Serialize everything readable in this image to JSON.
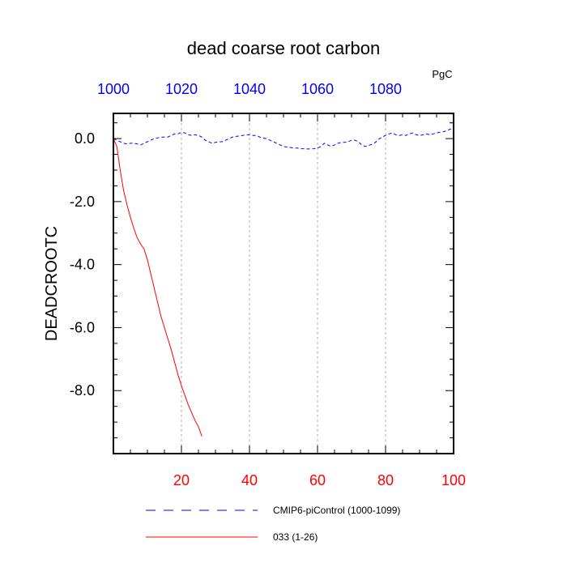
{
  "chart_data": {
    "type": "line",
    "title": "dead coarse root carbon",
    "units": "PgC",
    "ylabel": "DEADCROOTC",
    "ylim": [
      -10.0,
      0.8
    ],
    "yticks": [
      0.0,
      -2.0,
      -4.0,
      -6.0,
      -8.0
    ],
    "ytick_labels": [
      "0.0",
      "-2.0",
      "-4.0",
      "-6.0",
      "-8.0"
    ],
    "bottom_axis": {
      "range": [
        0,
        100
      ],
      "ticks": [
        20,
        40,
        60,
        80,
        100
      ],
      "tick_labels": [
        "20",
        "40",
        "60",
        "80",
        "100"
      ],
      "color": "#ff0000"
    },
    "top_axis": {
      "range": [
        1000,
        1100
      ],
      "ticks": [
        1000,
        1020,
        1040,
        1060,
        1080
      ],
      "tick_labels": [
        "1000",
        "1020",
        "1040",
        "1060",
        "1080"
      ],
      "color": "#0000ff"
    },
    "grid": "vertical dashed at major x ticks",
    "legend_placement": "bottom",
    "series": [
      {
        "name": "CMIP6-piControl (1000-1099)",
        "axis": "top",
        "color": "#0000ff",
        "dash": "dashed",
        "x": [
          1000,
          1001,
          1002,
          1003,
          1004,
          1005,
          1006,
          1007,
          1008,
          1009,
          1010,
          1011,
          1012,
          1013,
          1014,
          1015,
          1016,
          1017,
          1018,
          1019,
          1020,
          1021,
          1022,
          1023,
          1024,
          1025,
          1026,
          1027,
          1028,
          1029,
          1030,
          1031,
          1032,
          1033,
          1034,
          1035,
          1036,
          1037,
          1038,
          1039,
          1040,
          1041,
          1042,
          1043,
          1044,
          1045,
          1046,
          1047,
          1048,
          1049,
          1050,
          1051,
          1052,
          1053,
          1054,
          1055,
          1056,
          1057,
          1058,
          1059,
          1060,
          1061,
          1062,
          1063,
          1064,
          1065,
          1066,
          1067,
          1068,
          1069,
          1070,
          1071,
          1072,
          1073,
          1074,
          1075,
          1076,
          1077,
          1078,
          1079,
          1080,
          1081,
          1082,
          1083,
          1084,
          1085,
          1086,
          1087,
          1088,
          1089,
          1090,
          1091,
          1092,
          1093,
          1094,
          1095,
          1096,
          1097,
          1098,
          1099,
          1100
        ],
        "y": [
          0.0,
          -0.05,
          -0.1,
          -0.15,
          -0.17,
          -0.15,
          -0.15,
          -0.17,
          -0.2,
          -0.15,
          -0.1,
          -0.05,
          0.0,
          0.02,
          0.05,
          0.05,
          0.05,
          0.1,
          0.15,
          0.15,
          0.2,
          0.18,
          0.12,
          0.1,
          0.12,
          0.1,
          0.05,
          -0.05,
          -0.1,
          -0.15,
          -0.12,
          -0.1,
          -0.1,
          -0.05,
          0.0,
          0.05,
          0.07,
          0.08,
          0.1,
          0.12,
          0.12,
          0.1,
          0.1,
          0.05,
          0.02,
          0.0,
          -0.05,
          -0.1,
          -0.15,
          -0.2,
          -0.25,
          -0.27,
          -0.28,
          -0.3,
          -0.3,
          -0.32,
          -0.32,
          -0.33,
          -0.33,
          -0.32,
          -0.3,
          -0.25,
          -0.15,
          -0.2,
          -0.25,
          -0.2,
          -0.15,
          -0.12,
          -0.12,
          -0.1,
          -0.05,
          -0.05,
          -0.1,
          -0.2,
          -0.25,
          -0.22,
          -0.18,
          -0.12,
          -0.02,
          0.05,
          0.1,
          0.15,
          0.18,
          0.12,
          0.1,
          0.12,
          0.1,
          0.15,
          0.18,
          0.12,
          0.1,
          0.12,
          0.15,
          0.12,
          0.15,
          0.18,
          0.2,
          0.22,
          0.25,
          0.3,
          0.33
        ]
      },
      {
        "name": "033 (1-26)",
        "axis": "bottom",
        "color": "#ff0000",
        "dash": "solid",
        "x": [
          0,
          1,
          2,
          3,
          4,
          5,
          6,
          7,
          8,
          9,
          10,
          11,
          12,
          13,
          14,
          15,
          16,
          17,
          18,
          19,
          20,
          21,
          22,
          23,
          24,
          25,
          26
        ],
        "y": [
          0.0,
          -0.25,
          -1.0,
          -1.65,
          -2.1,
          -2.5,
          -2.85,
          -3.15,
          -3.35,
          -3.5,
          -3.85,
          -4.3,
          -4.75,
          -5.2,
          -5.65,
          -6.0,
          -6.35,
          -6.7,
          -7.1,
          -7.5,
          -7.85,
          -8.15,
          -8.45,
          -8.7,
          -8.95,
          -9.15,
          -9.45
        ]
      }
    ]
  }
}
